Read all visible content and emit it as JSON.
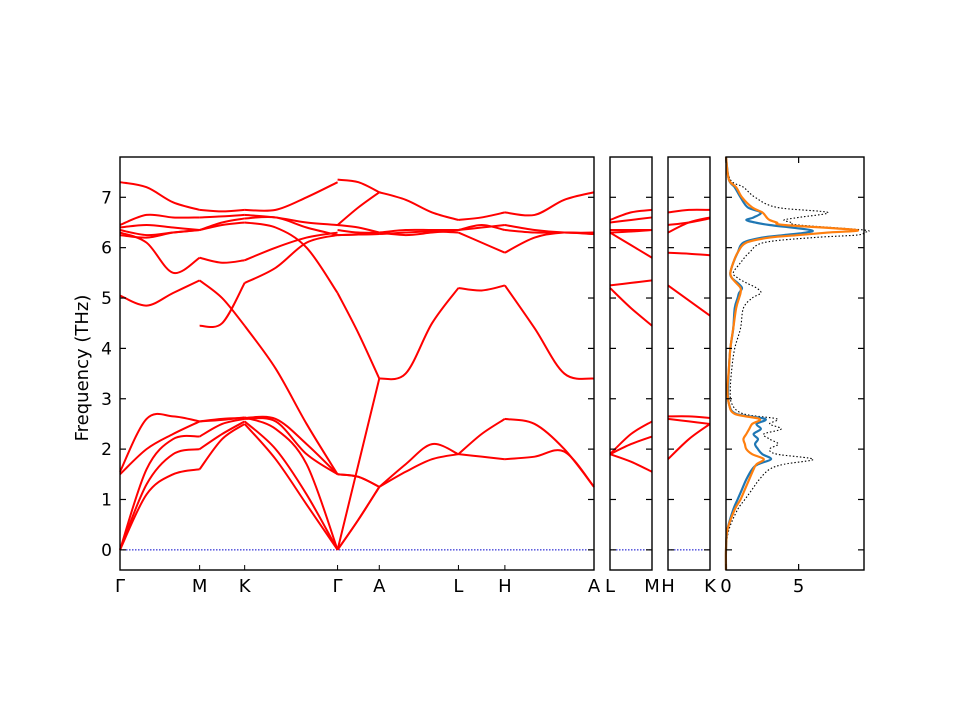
{
  "chart_data": {
    "type": "line",
    "ylabel": "Frequency (THz)",
    "ylim": [
      -0.4,
      7.8
    ],
    "yticks": [
      0,
      1,
      2,
      3,
      4,
      5,
      6,
      7
    ],
    "colors": {
      "band": "#ff0000",
      "zero_line": "#0000cc",
      "dos_a": "#1f77b4",
      "dos_b": "#ff7f0e",
      "dos_total": "#000000"
    },
    "band_panels": [
      {
        "name": "main",
        "labels": [
          "Γ",
          "M",
          "K",
          "Γ",
          "A",
          "L",
          "H",
          "A"
        ],
        "segments": [
          {
            "from": "Γ",
            "to": "M",
            "bands": [
              [
                0,
                1.1,
                1.5,
                1.6
              ],
              [
                0,
                1.3,
                1.9,
                2.0
              ],
              [
                0,
                1.6,
                2.2,
                2.25
              ],
              [
                1.5,
                2.0,
                2.3,
                2.55
              ],
              [
                1.55,
                2.6,
                2.65,
                2.55
              ],
              [
                5.05,
                4.85,
                5.1,
                5.35
              ],
              [
                6.3,
                6.1,
                5.5,
                5.8
              ],
              [
                6.25,
                6.2,
                6.3,
                6.35
              ],
              [
                6.35,
                6.25,
                6.3,
                6.35
              ],
              [
                6.4,
                6.45,
                6.4,
                6.35
              ],
              [
                6.45,
                6.65,
                6.6,
                6.6
              ],
              [
                7.3,
                7.2,
                6.9,
                6.75
              ]
            ]
          },
          {
            "from": "M",
            "to": "K",
            "bands": [
              [
                1.6,
                2.2,
                2.5
              ],
              [
                2.0,
                2.3,
                2.55
              ],
              [
                2.25,
                2.5,
                2.6
              ],
              [
                2.55,
                2.6,
                2.62
              ],
              [
                2.55,
                2.58,
                2.63
              ],
              [
                4.45,
                4.5,
                5.3
              ],
              [
                5.35,
                5.0,
                4.45
              ],
              [
                5.8,
                5.7,
                5.75
              ],
              [
                6.35,
                6.45,
                6.5
              ],
              [
                6.35,
                6.5,
                6.58
              ],
              [
                6.6,
                6.62,
                6.65
              ],
              [
                6.75,
                6.72,
                6.75
              ]
            ]
          },
          {
            "from": "K",
            "to": "Γ",
            "bands": [
              [
                2.5,
                1.8,
                0.9,
                0
              ],
              [
                2.55,
                2.0,
                1.1,
                0
              ],
              [
                2.6,
                2.55,
                1.9,
                1.5
              ],
              [
                2.62,
                2.6,
                2.1,
                1.5
              ],
              [
                2.63,
                2.4,
                1.7,
                0
              ],
              [
                5.3,
                5.6,
                6.1,
                6.25
              ],
              [
                4.45,
                3.6,
                2.5,
                1.5
              ],
              [
                5.75,
                6.0,
                6.2,
                6.3
              ],
              [
                6.5,
                6.4,
                6.0,
                5.1
              ],
              [
                6.58,
                6.6,
                6.4,
                6.25
              ],
              [
                6.65,
                6.6,
                6.5,
                6.45
              ],
              [
                6.75,
                6.75,
                7.0,
                7.3
              ]
            ]
          },
          {
            "from": "Γ",
            "to": "A",
            "bands": [
              [
                0,
                0.6,
                1.25
              ],
              [
                0,
                0.6,
                1.25
              ],
              [
                1.5,
                1.45,
                1.25
              ],
              [
                1.5,
                1.45,
                1.25
              ],
              [
                0,
                1.7,
                3.4
              ],
              [
                5.1,
                4.3,
                3.4
              ],
              [
                6.25,
                6.26,
                6.27
              ],
              [
                6.25,
                6.26,
                6.27
              ],
              [
                6.45,
                6.8,
                7.1
              ],
              [
                6.35,
                6.3,
                6.3
              ],
              [
                7.35,
                7.3,
                7.1
              ],
              [
                6.45,
                6.4,
                6.3
              ]
            ]
          },
          {
            "from": "A",
            "to": "L",
            "bands": [
              [
                1.25,
                1.7,
                2.1,
                1.9
              ],
              [
                1.25,
                1.55,
                1.8,
                1.9
              ],
              [
                3.4,
                3.5,
                4.5,
                5.2
              ],
              [
                6.27,
                6.3,
                6.32,
                6.3
              ],
              [
                6.3,
                6.35,
                6.35,
                6.35
              ],
              [
                7.1,
                6.95,
                6.7,
                6.55
              ],
              [
                6.3,
                6.25,
                6.3,
                6.35
              ]
            ]
          },
          {
            "from": "L",
            "to": "H",
            "bands": [
              [
                1.9,
                2.3,
                2.6
              ],
              [
                1.9,
                1.85,
                1.8
              ],
              [
                5.2,
                5.15,
                5.25
              ],
              [
                6.3,
                6.1,
                5.9
              ],
              [
                6.35,
                6.45,
                6.35
              ],
              [
                6.55,
                6.6,
                6.7
              ],
              [
                6.35,
                6.4,
                6.45
              ]
            ]
          },
          {
            "from": "H",
            "to": "A",
            "bands": [
              [
                2.6,
                2.5,
                2.0,
                1.25
              ],
              [
                1.8,
                1.85,
                1.95,
                1.25
              ],
              [
                5.25,
                4.4,
                3.5,
                3.4
              ],
              [
                5.9,
                6.2,
                6.3,
                6.27
              ],
              [
                6.35,
                6.3,
                6.3,
                6.27
              ],
              [
                6.7,
                6.65,
                6.95,
                7.1
              ],
              [
                6.45,
                6.35,
                6.3,
                6.3
              ]
            ]
          }
        ]
      },
      {
        "name": "L-M",
        "labels": [
          "L",
          "M"
        ],
        "segments": [
          {
            "from": "L",
            "to": "M",
            "bands": [
              [
                1.9,
                1.75,
                1.55
              ],
              [
                1.9,
                2.1,
                2.25
              ],
              [
                1.9,
                2.3,
                2.55
              ],
              [
                5.2,
                4.8,
                4.45
              ],
              [
                5.25,
                5.3,
                5.35
              ],
              [
                6.3,
                6.05,
                5.8
              ],
              [
                6.35,
                6.35,
                6.35
              ],
              [
                6.3,
                6.32,
                6.35
              ],
              [
                6.5,
                6.55,
                6.6
              ],
              [
                6.55,
                6.7,
                6.75
              ]
            ]
          }
        ]
      },
      {
        "name": "H-K",
        "labels": [
          "H",
          "K"
        ],
        "segments": [
          {
            "from": "H",
            "to": "K",
            "bands": [
              [
                1.8,
                2.2,
                2.5
              ],
              [
                2.6,
                2.55,
                2.5
              ],
              [
                2.65,
                2.65,
                2.62
              ],
              [
                5.25,
                4.95,
                4.65
              ],
              [
                5.9,
                5.88,
                5.85
              ],
              [
                6.3,
                6.5,
                6.6
              ],
              [
                6.45,
                6.5,
                6.58
              ],
              [
                6.7,
                6.75,
                6.75
              ]
            ]
          }
        ]
      }
    ],
    "dos": {
      "xticks": [
        0,
        5
      ],
      "xlim": [
        0,
        9.5
      ],
      "freq": [
        -0.4,
        0,
        0.4,
        0.8,
        1.0,
        1.2,
        1.4,
        1.6,
        1.7,
        1.8,
        1.9,
        2.0,
        2.1,
        2.2,
        2.3,
        2.4,
        2.5,
        2.6,
        2.7,
        2.9,
        3.2,
        3.6,
        4.0,
        4.4,
        4.8,
        5.0,
        5.1,
        5.2,
        5.3,
        5.4,
        5.5,
        5.7,
        5.9,
        6.1,
        6.2,
        6.25,
        6.3,
        6.35,
        6.45,
        6.5,
        6.55,
        6.6,
        6.7,
        6.8,
        7.0,
        7.2,
        7.35,
        7.8
      ],
      "series": [
        {
          "values": [
            0,
            0.0,
            0.1,
            0.5,
            0.8,
            1.1,
            1.4,
            1.8,
            2.2,
            3.1,
            2.5,
            2.2,
            2.0,
            2.2,
            1.9,
            2.4,
            2.1,
            2.7,
            0.7,
            0.2,
            0.15,
            0.2,
            0.3,
            0.5,
            0.6,
            0.8,
            0.9,
            1.1,
            0.8,
            0.4,
            0.3,
            0.5,
            0.8,
            1.2,
            2.5,
            4.0,
            5.5,
            5.8,
            3.0,
            2.0,
            1.4,
            1.9,
            2.4,
            1.5,
            1.0,
            0.6,
            0.2,
            0
          ]
        },
        {
          "values": [
            0,
            0.0,
            0.1,
            0.6,
            1.0,
            1.3,
            1.6,
            1.9,
            2.1,
            2.6,
            1.8,
            1.4,
            1.3,
            1.2,
            1.4,
            1.6,
            1.8,
            2.3,
            0.6,
            0.2,
            0.1,
            0.2,
            0.3,
            0.5,
            0.7,
            0.9,
            1.0,
            1.0,
            0.7,
            0.4,
            0.3,
            0.5,
            0.8,
            1.4,
            3.0,
            5.0,
            7.0,
            9.0,
            4.0,
            3.5,
            3.0,
            2.8,
            2.5,
            1.8,
            1.1,
            0.7,
            0.2,
            0
          ]
        },
        {
          "values": [
            0,
            0.0,
            0.2,
            0.8,
            1.3,
            1.8,
            2.3,
            3.0,
            4.0,
            6.0,
            3.5,
            3.0,
            3.6,
            3.0,
            2.6,
            3.8,
            3.0,
            3.5,
            1.2,
            0.4,
            0.3,
            0.4,
            0.6,
            1.0,
            1.2,
            1.8,
            2.4,
            2.1,
            1.4,
            0.8,
            0.5,
            1.0,
            1.6,
            2.6,
            6.0,
            9.0,
            9.5,
            9.5,
            5.0,
            4.5,
            4.0,
            5.0,
            7.0,
            3.5,
            2.0,
            1.2,
            0.3,
            0
          ]
        }
      ]
    }
  }
}
